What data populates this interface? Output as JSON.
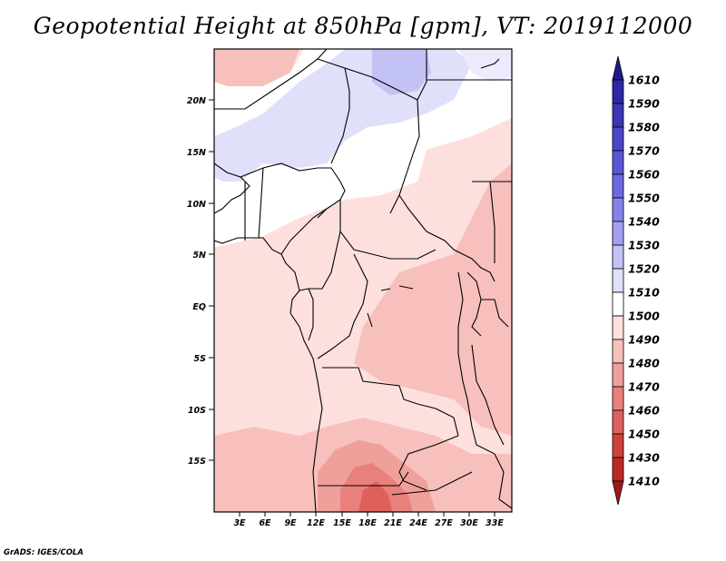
{
  "title": "Geopotential Height at 850hPa [gpm], VT: 2019112000",
  "credit": "GrADS: IGES/COLA",
  "map": {
    "lon_range": [
      0,
      35
    ],
    "lat_range": [
      -20,
      25
    ],
    "lat_labels": [
      "20N",
      "15N",
      "10N",
      "5N",
      "EQ",
      "5S",
      "10S",
      "15S"
    ],
    "lon_labels": [
      "3E",
      "6E",
      "9E",
      "12E",
      "15E",
      "18E",
      "21E",
      "24E",
      "27E",
      "30E",
      "33E"
    ]
  },
  "colorbar": {
    "labels": [
      "1610",
      "1590",
      "1580",
      "1570",
      "1560",
      "1550",
      "1540",
      "1530",
      "1520",
      "1510",
      "1500",
      "1490",
      "1480",
      "1470",
      "1460",
      "1450",
      "1430",
      "1410"
    ],
    "colors": [
      "#201a8a",
      "#2c28a6",
      "#3b36b8",
      "#4a46c8",
      "#5a57d6",
      "#6c6ae0",
      "#8583e8",
      "#a3a1ef",
      "#c3c2f5",
      "#e0e0fb",
      "#ffffff",
      "#fde0de",
      "#f8c0bc",
      "#f0a09b",
      "#e8807c",
      "#de605c",
      "#d0403c",
      "#bb2825",
      "#a01816"
    ]
  }
}
